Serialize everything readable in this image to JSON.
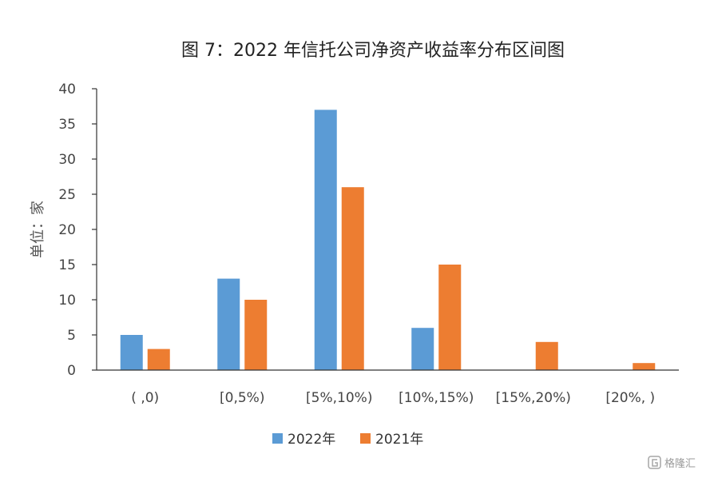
{
  "chart_data": {
    "type": "bar",
    "title": "图 7：2022 年信托公司净资产收益率分布区间图",
    "ylabel": "单位：家",
    "xlabel": "",
    "categories": [
      "( ,0)",
      "[0,5%)",
      "[5%,10%)",
      "[10%,15%)",
      "[15%,20%)",
      "[20%, )"
    ],
    "series": [
      {
        "name": "2022年",
        "color": "#5B9BD5",
        "values": [
          5,
          13,
          37,
          6,
          0,
          0
        ]
      },
      {
        "name": "2021年",
        "color": "#ED7D31",
        "values": [
          3,
          10,
          26,
          15,
          4,
          1
        ]
      }
    ],
    "ylim": [
      0,
      40
    ],
    "yticks": [
      0,
      5,
      10,
      15,
      20,
      25,
      30,
      35,
      40
    ],
    "grid": false,
    "legend": "bottom"
  },
  "watermark": {
    "text": "格隆汇",
    "icon": "gelonghui-logo-icon"
  }
}
